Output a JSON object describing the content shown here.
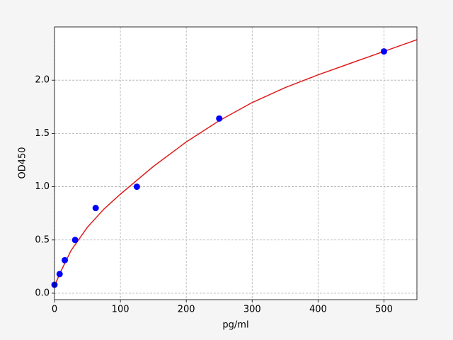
{
  "chart_data": {
    "type": "scatter",
    "x_label": "pg/ml",
    "y_label": "OD450",
    "xlim": [
      0,
      550
    ],
    "ylim": [
      -0.06,
      2.5
    ],
    "xticks": [
      0,
      100,
      200,
      300,
      400,
      500
    ],
    "yticks": [
      {
        "value": 0,
        "label": "0.0"
      },
      0.5,
      {
        "value": 1,
        "label": "1.0"
      },
      1.5,
      {
        "value": 2,
        "label": "2.0"
      }
    ],
    "grid": true,
    "series": [
      {
        "type": "scatter",
        "color": "#0000ff",
        "x": [
          0,
          7.8,
          15.6,
          31.25,
          62.5,
          125,
          250,
          500
        ],
        "values": [
          0.08,
          0.18,
          0.31,
          0.5,
          0.8,
          1.0,
          1.64,
          2.27
        ]
      },
      {
        "type": "line",
        "color": "#dd1c1c",
        "x": [
          0,
          10,
          25,
          50,
          75,
          100,
          150,
          200,
          250,
          300,
          350,
          400,
          450,
          500,
          550
        ],
        "values": [
          0.07,
          0.21,
          0.4,
          0.62,
          0.79,
          0.93,
          1.19,
          1.42,
          1.62,
          1.79,
          1.93,
          2.05,
          2.16,
          2.27,
          2.38
        ]
      }
    ]
  }
}
